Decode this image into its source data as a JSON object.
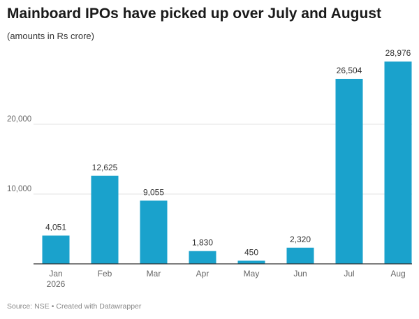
{
  "title": "Mainboard IPOs have picked up over July and August",
  "subtitle": "(amounts in Rs crore)",
  "footer": {
    "source": "Source: NSE",
    "separator": "•",
    "credit": "Created with Datawrapper"
  },
  "colors": {
    "bar": "#1aa2cc",
    "grid": "#e3e3e3",
    "baseline": "#333333",
    "label": "#333333",
    "tick": "#666666"
  },
  "chart_data": {
    "type": "bar",
    "categories": [
      "Jan 2026",
      "Feb",
      "Mar",
      "Apr",
      "May",
      "Jun",
      "Jul",
      "Aug"
    ],
    "category_lines": [
      [
        "Jan",
        "2026"
      ],
      [
        "Feb"
      ],
      [
        "Mar"
      ],
      [
        "Apr"
      ],
      [
        "May"
      ],
      [
        "Jun"
      ],
      [
        "Jul"
      ],
      [
        "Aug"
      ]
    ],
    "values": [
      4051,
      12625,
      9055,
      1830,
      450,
      2320,
      26504,
      28976
    ],
    "value_labels": [
      "4,051",
      "12,625",
      "9,055",
      "1,830",
      "450",
      "2,320",
      "26,504",
      "28,976"
    ],
    "yticks": [
      10000,
      20000
    ],
    "ytick_labels": [
      "10,000",
      "20,000"
    ],
    "ylim": [
      0,
      30000
    ],
    "grid": true,
    "legend": "none",
    "xlabel": "",
    "ylabel": ""
  }
}
